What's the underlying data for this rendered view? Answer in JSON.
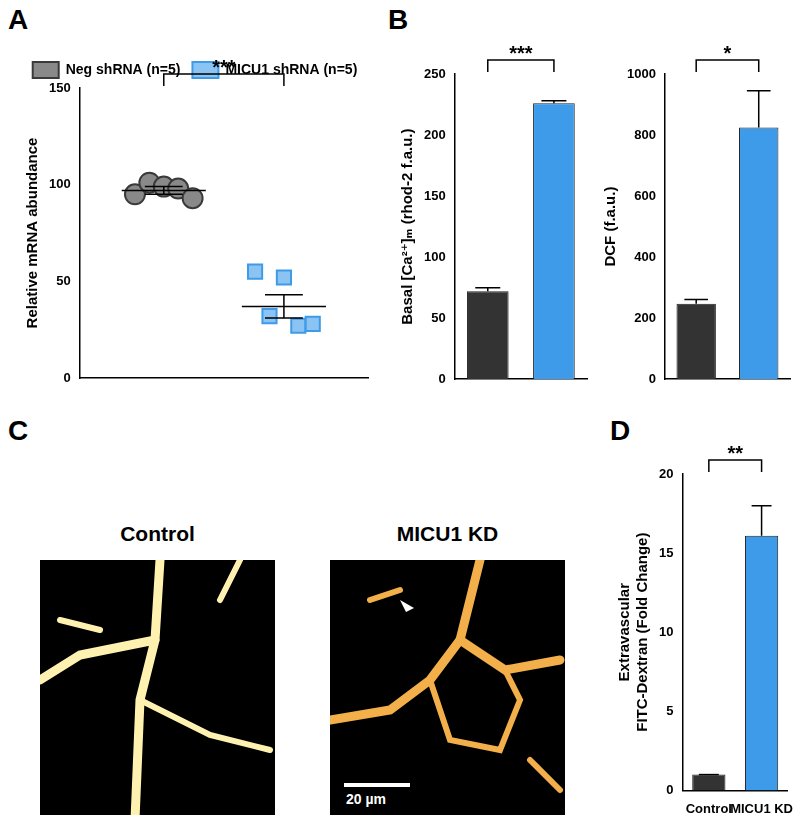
{
  "chart_data": [
    {
      "panel": "A",
      "type": "dot",
      "y_label": "Relative mRNA abundance",
      "ylim": [
        0,
        150
      ],
      "yticks": [
        0,
        50,
        100,
        150
      ],
      "grid": false,
      "legend": "top",
      "tick_labels": "y",
      "annotation": "***",
      "series": [
        {
          "name": "Neg shRNA (n=5)",
          "color": "#3a3a3a",
          "marker": "circle",
          "values": [
            95,
            101,
            99,
            98,
            93
          ],
          "mean": 97,
          "error": 2
        },
        {
          "name": "MICU1 shRNA (n=5)",
          "color": "#3d9be9",
          "marker": "square",
          "values": [
            55,
            32,
            52,
            27,
            28
          ],
          "mean": 37,
          "error": 6
        }
      ]
    },
    {
      "panel": "B",
      "type": "bar",
      "categories": [
        null,
        null
      ],
      "values": [
        72,
        226
      ],
      "errors": [
        3,
        2
      ],
      "colors": [
        "#333333",
        "#3d9be9"
      ],
      "y_label": "Basal [Ca²⁺]ₘ (rhod-2 f.a.u.)",
      "ylim": [
        0,
        250
      ],
      "yticks": [
        0,
        50,
        100,
        150,
        200,
        250
      ],
      "grid": false,
      "tick_labels": "y",
      "annotation": "***"
    },
    {
      "type": "bar",
      "categories": [
        null,
        null
      ],
      "values": [
        247,
        825
      ],
      "errors": [
        14,
        120
      ],
      "colors": [
        "#333333",
        "#3d9be9"
      ],
      "y_label": "DCF (f.a.u.)",
      "ylim": [
        0,
        1000
      ],
      "yticks": [
        0,
        200,
        400,
        600,
        800,
        1000
      ],
      "grid": false,
      "tick_labels": "y",
      "annotation": "*"
    },
    {
      "panel": "D",
      "type": "bar",
      "categories": [
        "Control",
        "MICU1 KD"
      ],
      "values": [
        1,
        16.1
      ],
      "errors": [
        0,
        1.9
      ],
      "colors": [
        "#333333",
        "#3d9be9"
      ],
      "y_label": [
        "Extravascular",
        "FITC-Dextran (Fold Change)"
      ],
      "ylim": [
        0,
        20
      ],
      "yticks": [
        0,
        5,
        10,
        15,
        20
      ],
      "grid": false,
      "annotation": "**"
    }
  ],
  "images": {
    "panel": "C",
    "images": [
      {
        "title": "Control"
      },
      {
        "title": "MICU1 KD",
        "scale_bar": "20 µm"
      }
    ]
  }
}
